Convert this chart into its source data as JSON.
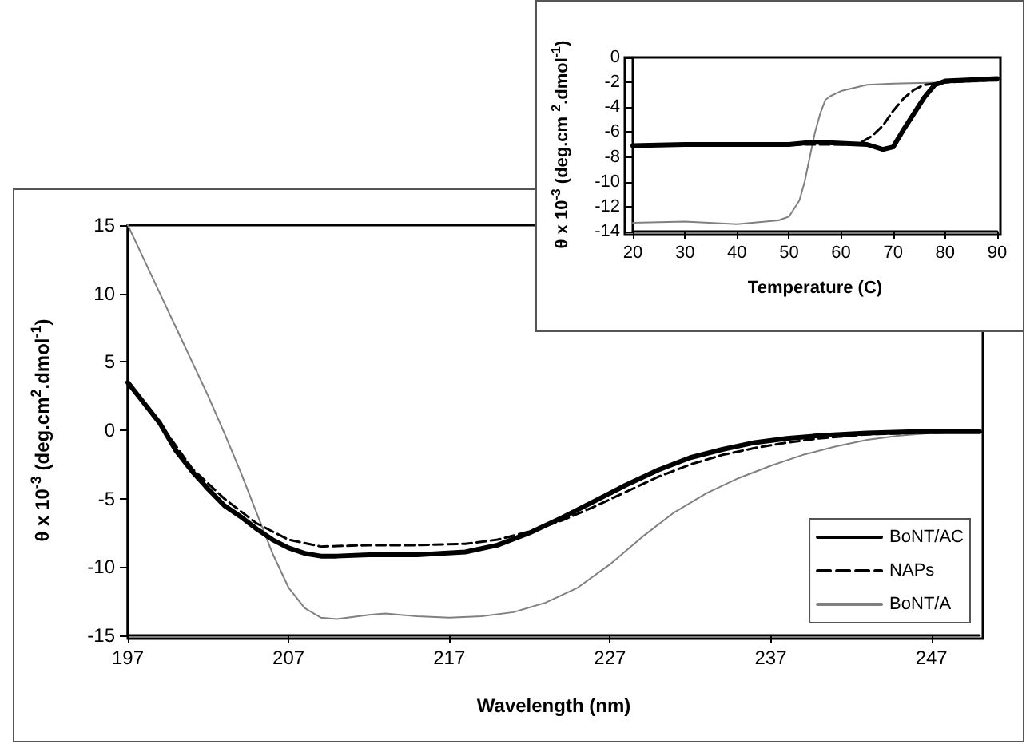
{
  "chart_data": [
    {
      "type": "line",
      "xlabel": "Wavelength (nm)",
      "ylabel": "θ x 10$^{-3}$ (deg.cm$^{2}$.dmol$^{-1}$)",
      "xlim": [
        197,
        250
      ],
      "xticks": [
        197,
        207,
        217,
        227,
        237,
        247
      ],
      "ylim": [
        -15,
        15
      ],
      "yticks": [
        -15,
        -10,
        -5,
        0,
        5,
        10,
        15
      ],
      "grid": false,
      "legend": "bottom right",
      "marker": "none",
      "series": [
        {
          "name": "BoNT/AC",
          "color": "#000000",
          "line_style": "solid",
          "x": [
            197,
            198,
            199,
            200,
            201,
            202,
            203,
            204,
            205,
            206,
            207,
            208,
            209,
            210,
            212,
            215,
            218,
            220,
            222,
            224,
            226,
            228,
            230,
            232,
            234,
            236,
            238,
            240,
            243,
            246,
            250
          ],
          "values": [
            3.5,
            2,
            0.5,
            -1.5,
            -3,
            -4.3,
            -5.5,
            -6.3,
            -7.2,
            -8,
            -8.6,
            -9,
            -9.2,
            -9.2,
            -9.1,
            -9.1,
            -8.9,
            -8.4,
            -7.5,
            -6.4,
            -5.2,
            -4,
            -2.9,
            -2,
            -1.4,
            -0.9,
            -0.6,
            -0.4,
            -0.2,
            -0.1,
            -0.1
          ]
        },
        {
          "name": "NAPs",
          "color": "#000000",
          "line_style": "dashed",
          "x": [
            197,
            199,
            201,
            203,
            205,
            207,
            209,
            212,
            215,
            218,
            220,
            222,
            224,
            226,
            228,
            230,
            232,
            234,
            236,
            238,
            240,
            243,
            246,
            250
          ],
          "values": [
            3.5,
            0.5,
            -2.8,
            -5,
            -6.8,
            -8,
            -8.5,
            -8.4,
            -8.4,
            -8.3,
            -8,
            -7.4,
            -6.6,
            -5.6,
            -4.5,
            -3.4,
            -2.5,
            -1.8,
            -1.3,
            -0.9,
            -0.6,
            -0.3,
            -0.2,
            -0.1
          ]
        },
        {
          "name": "BoNT/A",
          "color": "#808080",
          "line_style": "solid",
          "x": [
            197,
            198,
            199,
            200,
            201,
            202,
            203,
            204,
            205,
            206,
            207,
            208,
            209,
            210,
            212,
            213,
            215,
            217,
            219,
            221,
            223,
            225,
            227,
            229,
            231,
            233,
            235,
            237,
            239,
            241,
            243,
            245,
            247,
            248
          ],
          "values": [
            15,
            12.5,
            10,
            7.5,
            5,
            2.5,
            -0.2,
            -3,
            -6,
            -9,
            -11.5,
            -13,
            -13.7,
            -13.8,
            -13.5,
            -13.4,
            -13.6,
            -13.7,
            -13.6,
            -13.3,
            -12.6,
            -11.5,
            -9.8,
            -7.8,
            -6,
            -4.6,
            -3.5,
            -2.6,
            -1.8,
            -1.2,
            -0.7,
            -0.4,
            -0.2,
            -0.1
          ]
        }
      ]
    },
    {
      "type": "line",
      "xlabel": "Temperature (C)",
      "ylabel": "θ x 10$^{-3}$ (deg.cm $^{2}$.dmol$^{-1}$)",
      "xlim": [
        20,
        90
      ],
      "xticks": [
        20,
        30,
        40,
        50,
        60,
        70,
        80,
        90
      ],
      "ylim": [
        -14,
        0
      ],
      "yticks": [
        -14,
        -12,
        -10,
        -8,
        -6,
        -4,
        -2,
        0
      ],
      "grid": false,
      "legend": false,
      "marker": "none",
      "series": [
        {
          "color": "#000000",
          "line_style": "solid",
          "x": [
            20,
            30,
            40,
            50,
            55,
            60,
            65,
            68,
            70,
            72,
            74,
            76,
            78,
            80,
            90
          ],
          "values": [
            -7.1,
            -7,
            -7,
            -7,
            -6.8,
            -6.9,
            -7,
            -7.4,
            -7.2,
            -5.8,
            -4.5,
            -3.2,
            -2.2,
            -1.9,
            -1.7
          ]
        },
        {
          "color": "#000000",
          "line_style": "dashed",
          "x": [
            20,
            30,
            40,
            50,
            60,
            63,
            64,
            66,
            68,
            70,
            72,
            74,
            76,
            80,
            90
          ],
          "values": [
            -7.1,
            -7,
            -7,
            -7,
            -7,
            -7,
            -6.8,
            -6.3,
            -5.5,
            -4.3,
            -3.3,
            -2.6,
            -2.2,
            -2,
            -1.8
          ]
        },
        {
          "color": "#808080",
          "line_style": "solid",
          "x": [
            20,
            30,
            40,
            48,
            50,
            52,
            53,
            54,
            55,
            56,
            57,
            58,
            60,
            65,
            70,
            80,
            90
          ],
          "values": [
            -13.3,
            -13.2,
            -13.4,
            -13.1,
            -12.8,
            -11.5,
            -10,
            -8,
            -6,
            -4.5,
            -3.4,
            -3.1,
            -2.7,
            -2.2,
            -2.1,
            -2,
            -1.9
          ]
        }
      ]
    }
  ]
}
